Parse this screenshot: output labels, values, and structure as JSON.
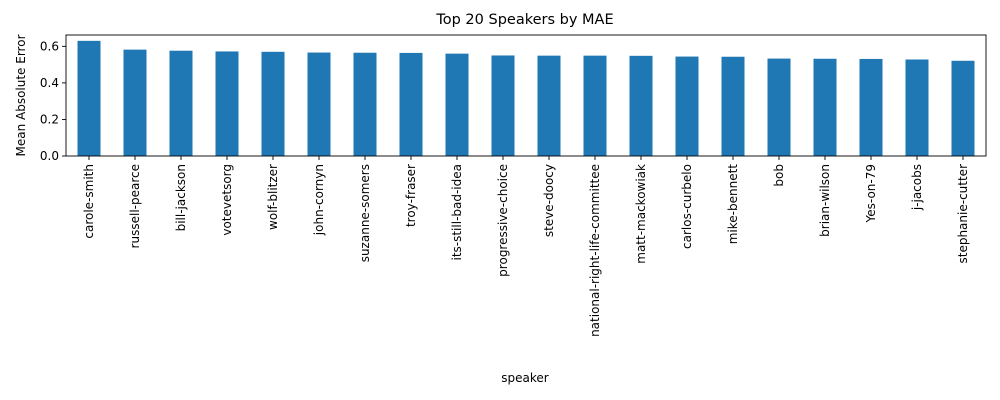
{
  "chart_data": {
    "type": "bar",
    "title": "Top 20 Speakers by MAE",
    "xlabel": "speaker",
    "ylabel": "Mean Absolute Error",
    "ylim": [
      0,
      0.662
    ],
    "yticks": [
      0.0,
      0.2,
      0.4,
      0.6
    ],
    "ytick_labels": [
      "0.0",
      "0.2",
      "0.4",
      "0.6"
    ],
    "grid": false,
    "legend": "none",
    "bar_color": "#1f77b4",
    "categories": [
      "carole-smith",
      "russell-pearce",
      "bill-jackson",
      "votevetsorg",
      "wolf-blitzer",
      "john-cornyn",
      "suzanne-somers",
      "troy-fraser",
      "its-still-bad-idea",
      "progressive-choice",
      "steve-doocy",
      "national-right-life-committee",
      "matt-mackowiak",
      "carlos-curbelo",
      "mike-bennett",
      "bob",
      "brian-wilson",
      "Yes-on-79",
      "j-jacobs",
      "stephanie-cutter"
    ],
    "values": [
      0.63,
      0.582,
      0.576,
      0.572,
      0.57,
      0.566,
      0.565,
      0.564,
      0.56,
      0.55,
      0.549,
      0.549,
      0.548,
      0.544,
      0.543,
      0.533,
      0.532,
      0.531,
      0.528,
      0.521
    ]
  }
}
